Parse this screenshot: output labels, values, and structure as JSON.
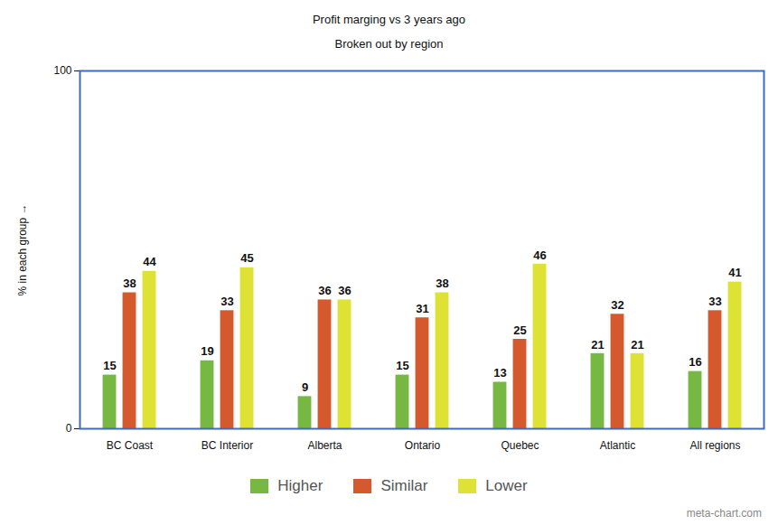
{
  "chart_data": {
    "type": "bar",
    "title": "Profit marging vs 3 years ago",
    "subtitle": "Broken out by region",
    "y_label": "% in each group",
    "categories": [
      "BC Coast",
      "BC Interior",
      "Alberta",
      "Ontario",
      "Quebec",
      "Atlantic",
      "All regions"
    ],
    "series": [
      {
        "name": "Higher",
        "color": "#77b843",
        "values": [
          15,
          19,
          9,
          15,
          13,
          21,
          16
        ]
      },
      {
        "name": "Similar",
        "color": "#d4592c",
        "values": [
          38,
          33,
          36,
          31,
          25,
          32,
          33
        ]
      },
      {
        "name": "Lower",
        "color": "#dde234",
        "values": [
          44,
          45,
          36,
          38,
          46,
          21,
          41
        ]
      }
    ],
    "ylim": [
      0,
      100
    ],
    "yticks": [
      0,
      100
    ],
    "grid": false,
    "legend": "bottom",
    "data_labels": true,
    "annotations": [
      "meta-chart.com"
    ]
  }
}
